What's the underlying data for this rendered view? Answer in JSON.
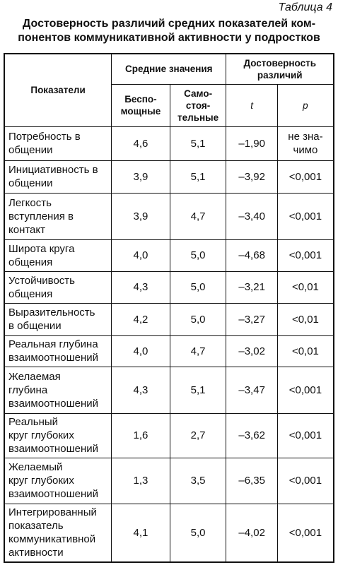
{
  "caption": "Таблица 4",
  "title": "Достоверность различий средних показателей ком-\nпонентов коммуникативной активности у подростков",
  "table": {
    "header": {
      "indicator": "Показатели",
      "means": "Средние значения",
      "significance": "Достоверность\nразличий",
      "helpless": "Беспо-\nмощные",
      "independent": "Само-\nстоя-\nтельные",
      "t": "t",
      "p": "p"
    },
    "rows": [
      [
        "Потребность в\nобщении",
        "4,6",
        "5,1",
        "–1,90",
        "не зна-\nчимо"
      ],
      [
        "Инициативность в\nобщении",
        "3,9",
        "5,1",
        "–3,92",
        "<0,001"
      ],
      [
        "Легкость\nвступления в\nконтакт",
        "3,9",
        "4,7",
        "–3,40",
        "<0,001"
      ],
      [
        "Широта круга\nобщения",
        "4,0",
        "5,0",
        "–4,68",
        "<0,001"
      ],
      [
        "Устойчивость\nобщения",
        "4,3",
        "5,0",
        "–3,21",
        "<0,01"
      ],
      [
        "Выразительность\nв общении",
        "4,2",
        "5,0",
        "–3,27",
        "<0,01"
      ],
      [
        "Реальная глубина\nвзаимоотношений",
        "4,0",
        "4,7",
        "–3,02",
        "<0,01"
      ],
      [
        "Желаемая\nглубина\nвзаимоотношений",
        "4,3",
        "5,1",
        "–3,47",
        "<0,001"
      ],
      [
        "Реальный\nкруг глубоких\nвзаимоотношений",
        "1,6",
        "2,7",
        "–3,62",
        "<0,001"
      ],
      [
        "Желаемый\nкруг глубоких\nвзаимоотношений",
        "1,3",
        "3,5",
        "–6,35",
        "<0,001"
      ],
      [
        "Интегрированный\nпоказатель\nкоммуникативной\nактивности",
        "4,1",
        "5,0",
        "–4,02",
        "<0,001"
      ]
    ]
  }
}
